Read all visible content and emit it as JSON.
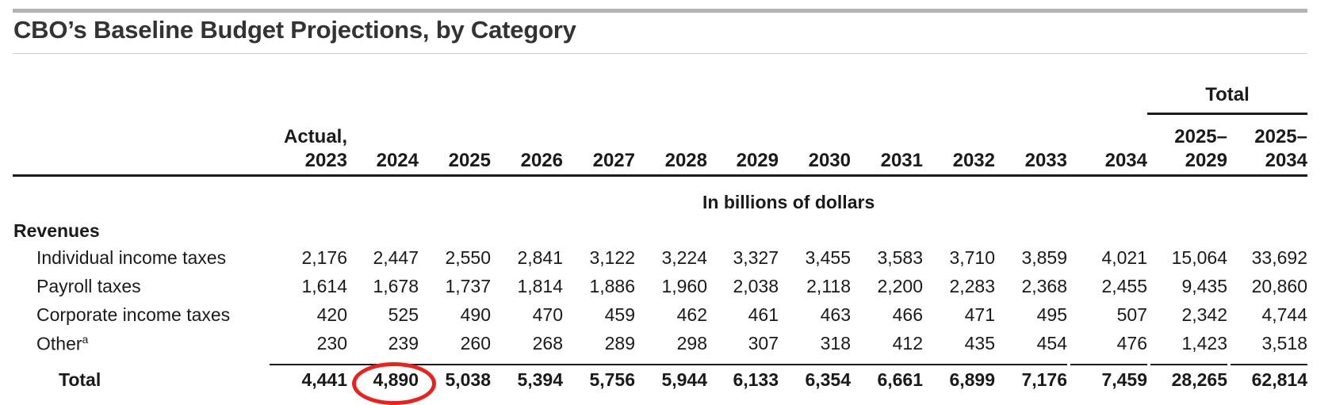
{
  "title": "CBO’s Baseline Budget Projections, by Category",
  "total_group_label": "Total",
  "units_label": "In billions of dollars",
  "columns": [
    {
      "line1": "Actual,",
      "line2": "2023"
    },
    {
      "line1": "",
      "line2": "2024"
    },
    {
      "line1": "",
      "line2": "2025"
    },
    {
      "line1": "",
      "line2": "2026"
    },
    {
      "line1": "",
      "line2": "2027"
    },
    {
      "line1": "",
      "line2": "2028"
    },
    {
      "line1": "",
      "line2": "2029"
    },
    {
      "line1": "",
      "line2": "2030"
    },
    {
      "line1": "",
      "line2": "2031"
    },
    {
      "line1": "",
      "line2": "2032"
    },
    {
      "line1": "",
      "line2": "2033"
    },
    {
      "line1": "",
      "line2": "2034"
    },
    {
      "line1": "2025–",
      "line2": "2029"
    },
    {
      "line1": "2025–",
      "line2": "2034"
    }
  ],
  "section_label": "Revenues",
  "rows": [
    {
      "label": "Individual income taxes",
      "values": [
        "2,176",
        "2,447",
        "2,550",
        "2,841",
        "3,122",
        "3,224",
        "3,327",
        "3,455",
        "3,583",
        "3,710",
        "3,859",
        "4,021",
        "15,064",
        "33,692"
      ]
    },
    {
      "label": "Payroll taxes",
      "values": [
        "1,614",
        "1,678",
        "1,737",
        "1,814",
        "1,886",
        "1,960",
        "2,038",
        "2,118",
        "2,200",
        "2,283",
        "2,368",
        "2,455",
        "9,435",
        "20,860"
      ]
    },
    {
      "label": "Corporate income taxes",
      "values": [
        "420",
        "525",
        "490",
        "470",
        "459",
        "462",
        "461",
        "463",
        "466",
        "471",
        "495",
        "507",
        "2,342",
        "4,744"
      ]
    },
    {
      "label": "Other",
      "footnote": "a",
      "values": [
        "230",
        "239",
        "260",
        "268",
        "289",
        "298",
        "307",
        "318",
        "412",
        "435",
        "454",
        "476",
        "1,423",
        "3,518"
      ]
    }
  ],
  "total_row": {
    "label": "Total",
    "values": [
      "4,441",
      "4,890",
      "5,038",
      "5,394",
      "5,756",
      "5,944",
      "6,133",
      "6,354",
      "6,661",
      "6,899",
      "7,176",
      "7,459",
      "28,265",
      "62,814"
    ]
  },
  "highlight_color": "#e8231f"
}
